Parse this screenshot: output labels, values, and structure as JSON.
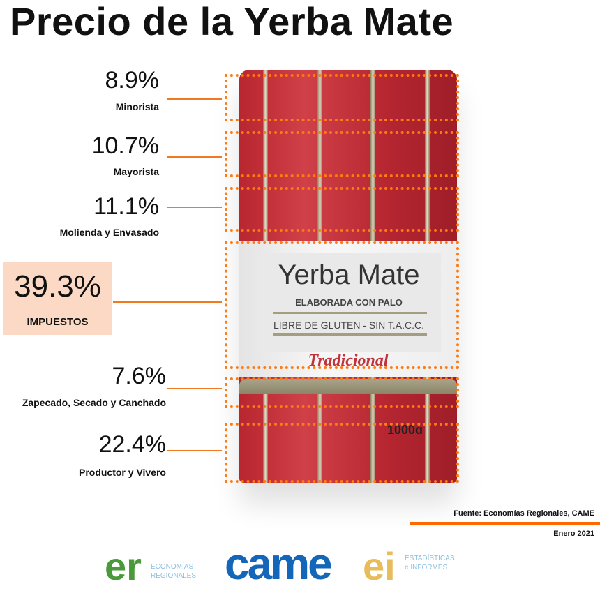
{
  "title": "Precio de la Yerba Mate",
  "package": {
    "brand": "Yerba Mate",
    "line1": "ELABORADA CON PALO",
    "line2": "LIBRE DE GLUTEN - SIN T.A.C.C.",
    "variety": "Tradicional",
    "weight": "1000g"
  },
  "chart_data": {
    "type": "stacked",
    "title": "Precio de la Yerba Mate",
    "unit": "%",
    "categories": [
      "Minorista",
      "Mayorista",
      "Molienda y Envasado",
      "IMPUESTOS",
      "Zapecado, Secado y Canchado",
      "Productor y Vivero"
    ],
    "values": [
      8.9,
      10.7,
      11.1,
      39.3,
      7.6,
      22.4
    ],
    "labels": [
      "8.9%",
      "10.7%",
      "11.1%",
      "39.3%",
      "7.6%",
      "22.4%"
    ],
    "highlight": "IMPUESTOS",
    "colors": {
      "accent": "#ff7a10",
      "highlight_bg": "#fbd9c4",
      "bag": "#c0333c"
    }
  },
  "footer": {
    "source": "Fuente: Economías Regionales, CAME",
    "date": "Enero 2021",
    "logos": {
      "er": "er",
      "er_text1": "ECONOMÍAS",
      "er_text2": "REGIONALES",
      "came": "came",
      "ei": "ei",
      "ei_text1": "ESTADÍSTICAS",
      "ei_text2": "e INFORMES"
    }
  }
}
